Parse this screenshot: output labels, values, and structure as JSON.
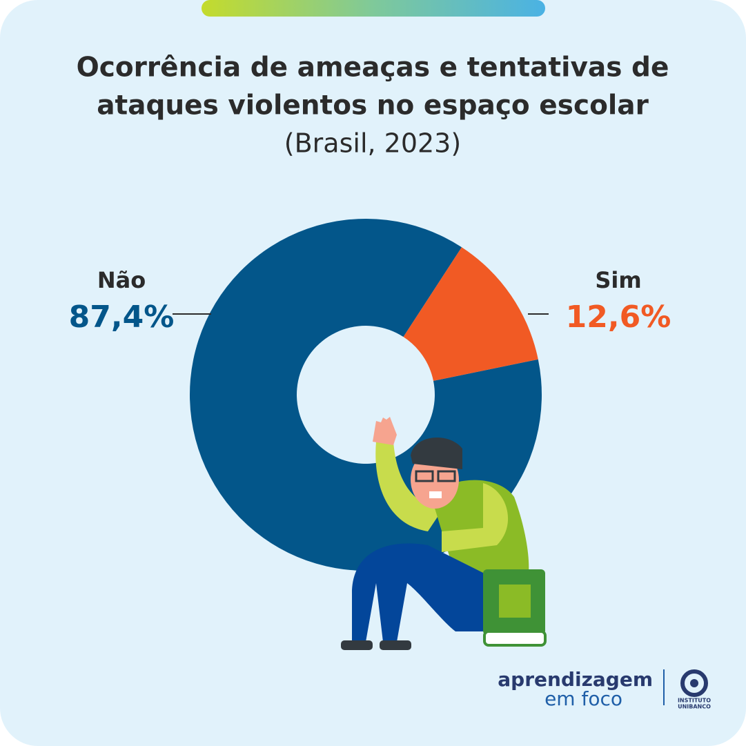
{
  "chart_data": {
    "type": "donut",
    "title": [
      "Ocorrência de ameaças e tentativas de",
      "ataques violentos no espaço escolar"
    ],
    "subtitle": "(Brasil, 2023)",
    "categories": [
      "Não",
      "Sim"
    ],
    "values": [
      87.4,
      12.6
    ],
    "value_labels": [
      "87,4%",
      "12,6%"
    ],
    "colors": [
      "#03568a",
      "#f15a24"
    ]
  },
  "logo": {
    "line1": "aprendizagem",
    "line2": "em foco",
    "brand1": "INSTITUTO",
    "brand2": "UNIBANCO"
  }
}
